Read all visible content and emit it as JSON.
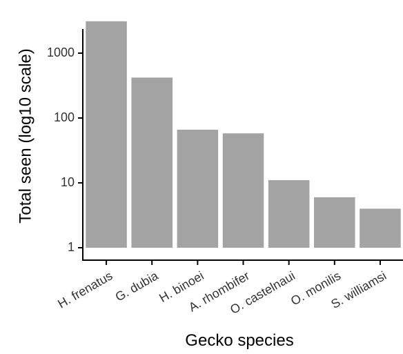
{
  "chart_data": {
    "type": "bar",
    "xlabel": "Gecko species",
    "ylabel": "Total seen (log10 scale)",
    "y_scale": "log10",
    "ylim": [
      1,
      3200
    ],
    "yticks": [
      1,
      10,
      100,
      1000
    ],
    "ytick_labels": [
      "1",
      "10",
      "100",
      "1000"
    ],
    "categories": [
      "H. frenatus",
      "G. dubia",
      "H. binoei",
      "A. rhombifer",
      "O. castelnaui",
      "O. monilis",
      "S. williamsi"
    ],
    "values": [
      3100,
      420,
      66,
      58,
      11,
      6,
      4
    ],
    "bar_color": "#a3a3a3",
    "grid": false,
    "legend": "none"
  }
}
